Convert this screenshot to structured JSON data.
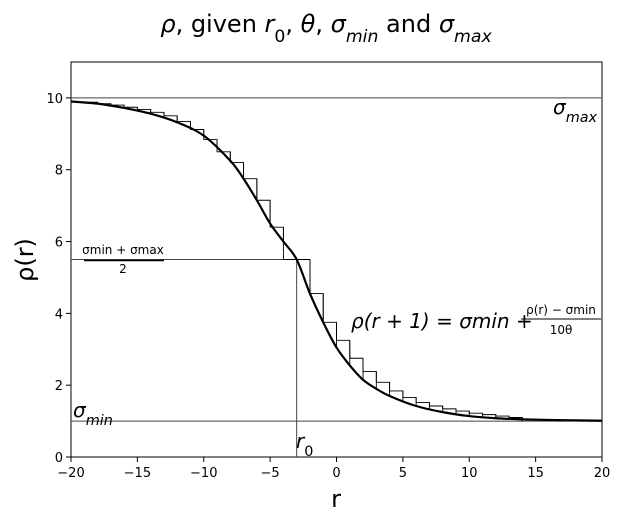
{
  "chart_data": {
    "type": "line",
    "title": "ρ, given r₀, θ, σmin and σmax",
    "title_parts": {
      "rho": "ρ",
      "given": ", given ",
      "r": "r",
      "r_sub": "0",
      "theta": "θ",
      "sigma": "σ",
      "min_sub": "min",
      "and": " and ",
      "max_sub": "max"
    },
    "xlabel": "r",
    "ylabel": "ρ(r)",
    "xlim": [
      -20,
      20
    ],
    "ylim": [
      0,
      11
    ],
    "xticks": [
      -20,
      -15,
      -10,
      -5,
      0,
      5,
      10,
      15,
      20
    ],
    "xtick_labels": [
      "−20",
      "−15",
      "−10",
      "−5",
      "0",
      "5",
      "10",
      "15",
      "20"
    ],
    "yticks": [
      0,
      2,
      4,
      6,
      8,
      10
    ],
    "yticks_labels": [
      "0",
      "2",
      "4",
      "6",
      "8",
      "10"
    ],
    "grid": false,
    "sigma_min": 1,
    "sigma_max": 10,
    "r0": -3,
    "series": [
      {
        "style": "smooth",
        "x": [
          -20,
          -18,
          -16,
          -14,
          -12,
          -10,
          -8,
          -7,
          -6,
          -5,
          -4,
          -3,
          -2,
          -1,
          0,
          1,
          2,
          3,
          4,
          6,
          8,
          10,
          12,
          14,
          16,
          18,
          20
        ],
        "y": [
          9.9,
          9.84,
          9.72,
          9.56,
          9.32,
          8.95,
          8.25,
          7.75,
          7.15,
          6.5,
          6.0,
          5.5,
          4.55,
          3.75,
          3.05,
          2.55,
          2.15,
          1.9,
          1.7,
          1.42,
          1.25,
          1.14,
          1.08,
          1.05,
          1.03,
          1.02,
          1.01
        ]
      },
      {
        "style": "steps",
        "x": [
          -19,
          -18,
          -17,
          -16,
          -15,
          -14,
          -13,
          -12,
          -11,
          -10,
          -9,
          -8,
          -7,
          -6,
          -5,
          -4,
          -3,
          -2,
          -1,
          0,
          1,
          2,
          3,
          4,
          5,
          6,
          7,
          8,
          9,
          10,
          11,
          12,
          13
        ],
        "y": [
          9.88,
          9.84,
          9.8,
          9.74,
          9.68,
          9.6,
          9.5,
          9.34,
          9.12,
          8.84,
          8.5,
          8.2,
          7.75,
          7.15,
          6.4,
          5.5,
          5.5,
          4.55,
          3.75,
          3.25,
          2.75,
          2.38,
          2.08,
          1.84,
          1.66,
          1.52,
          1.42,
          1.34,
          1.28,
          1.22,
          1.18,
          1.14,
          1.1
        ]
      }
    ],
    "annotations": {
      "sigma_max_label": {
        "base": "σ",
        "sub": "max"
      },
      "sigma_min_label": {
        "base": "σ",
        "sub": "min"
      },
      "r0_label": {
        "base": "r",
        "sub": "0"
      },
      "midpoint_label": {
        "numerator": "σmin + σmax",
        "denominator": "2"
      },
      "recurrence": {
        "lhs": "ρ(r + 1) = σmin + ",
        "numerator": "ρ(r) − σmin",
        "denominator": "10θ"
      }
    }
  }
}
